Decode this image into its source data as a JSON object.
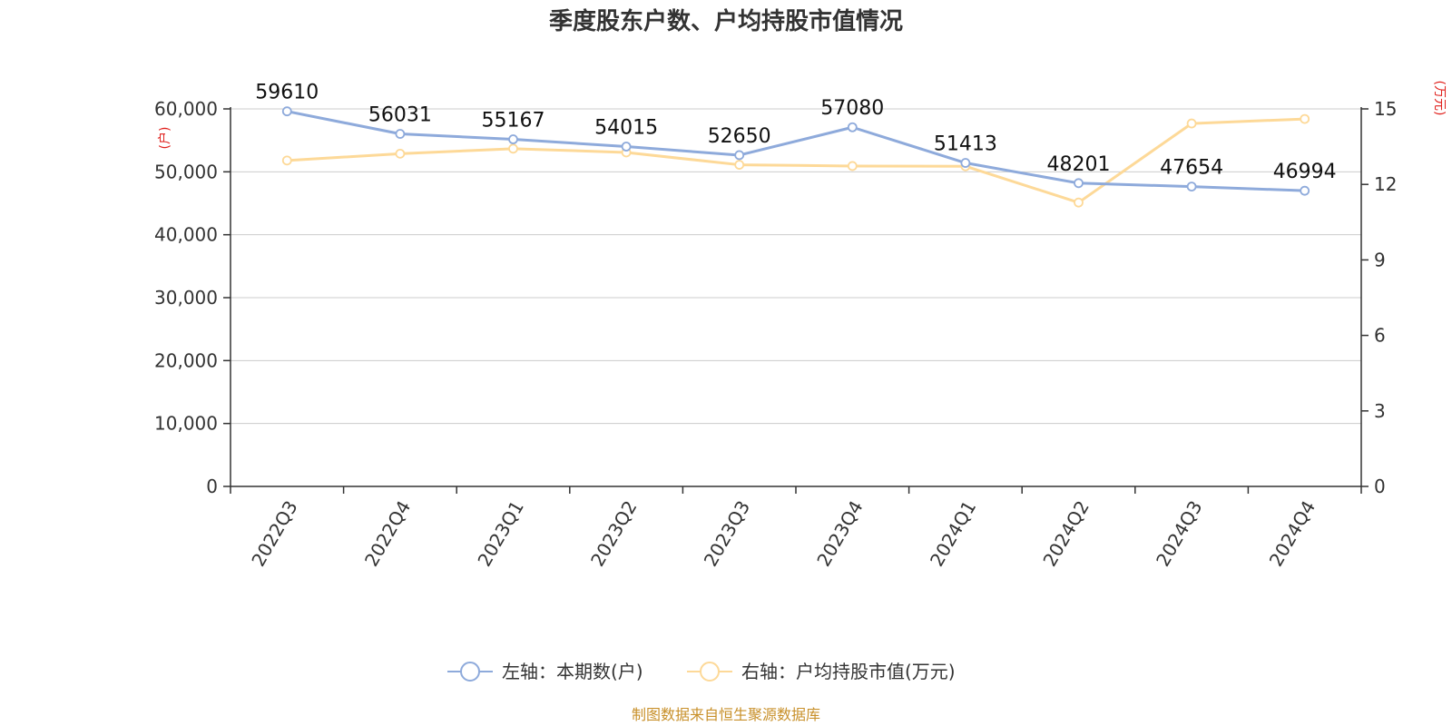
{
  "chart_data": {
    "type": "line",
    "title": "季度股东户数、户均持股市值情况",
    "categories": [
      "2022Q3",
      "2022Q4",
      "2023Q1",
      "2023Q2",
      "2023Q3",
      "2023Q4",
      "2024Q1",
      "2024Q2",
      "2024Q3",
      "2024Q4"
    ],
    "series": [
      {
        "name": "左轴：本期数(户)",
        "axis": "left",
        "color": "#8eaadb",
        "values": [
          59610,
          56031,
          55167,
          54015,
          52650,
          57080,
          51413,
          48201,
          47654,
          46994
        ],
        "data_labels": [
          "59610",
          "56031",
          "55167",
          "54015",
          "52650",
          "57080",
          "51413",
          "48201",
          "47654",
          "46994"
        ]
      },
      {
        "name": "右轴：户均持股市值(万元)",
        "axis": "right",
        "color": "#fdd998",
        "values": [
          12.95,
          13.22,
          13.42,
          13.27,
          12.78,
          12.73,
          12.72,
          11.28,
          14.42,
          14.6
        ]
      }
    ],
    "left_axis": {
      "unit_label": "(户)",
      "ylim": [
        0,
        60000
      ],
      "ticks": [
        0,
        10000,
        20000,
        30000,
        40000,
        50000,
        60000
      ],
      "tick_labels": [
        "0",
        "10,000",
        "20,000",
        "30,000",
        "40,000",
        "50,000",
        "60,000"
      ]
    },
    "right_axis": {
      "unit_label": "(万元)",
      "ylim": [
        0,
        15
      ],
      "ticks": [
        0,
        3,
        6,
        9,
        12,
        15
      ],
      "tick_labels": [
        "0",
        "3",
        "6",
        "9",
        "12",
        "15"
      ]
    },
    "grid": true,
    "legend_position": "bottom-center",
    "source": "制图数据来自恒生聚源数据库"
  }
}
